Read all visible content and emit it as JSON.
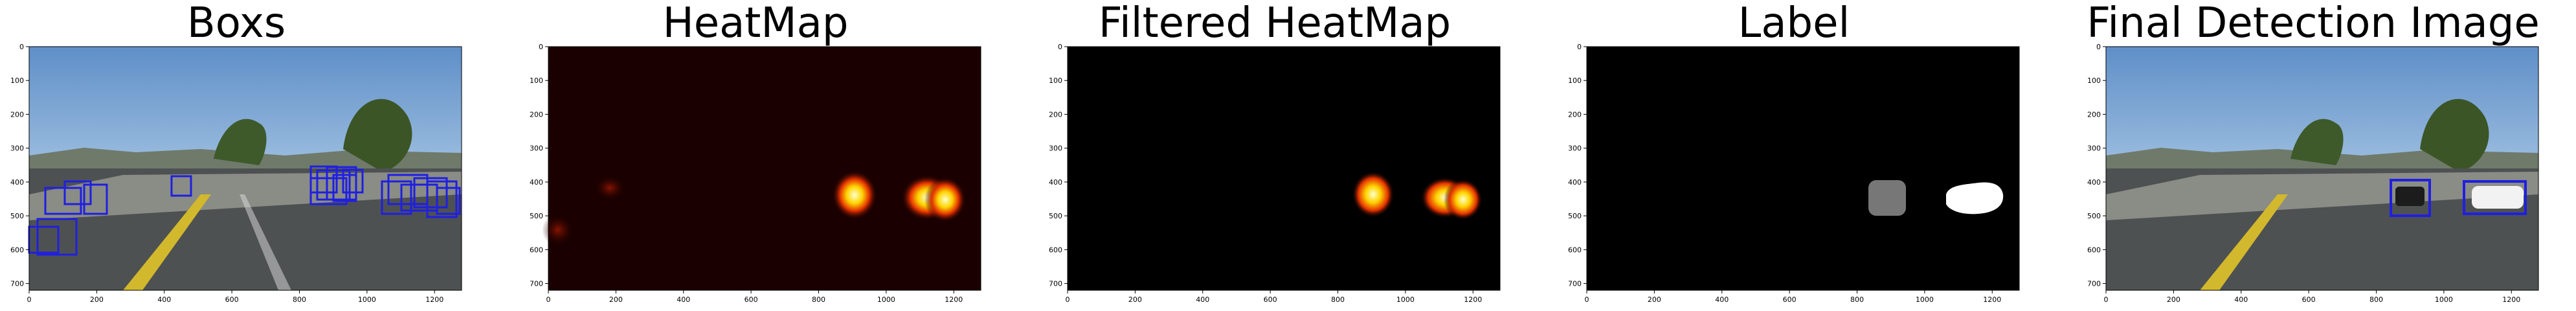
{
  "panels": [
    {
      "id": "boxes",
      "title": "Boxs"
    },
    {
      "id": "heatmap",
      "title": "HeatMap"
    },
    {
      "id": "filtered",
      "title": "Filtered HeatMap"
    },
    {
      "id": "label",
      "title": "Label"
    },
    {
      "id": "final",
      "title": "Final Detection Image"
    }
  ],
  "axes": {
    "x_ticks": [
      0,
      200,
      400,
      600,
      800,
      1000,
      1200
    ],
    "y_ticks": [
      0,
      100,
      200,
      300,
      400,
      500,
      600,
      700
    ],
    "x_range": [
      0,
      1280
    ],
    "y_range": [
      0,
      720
    ]
  },
  "colors": {
    "box_color": "#1f1fe0",
    "heat_background": "#1a0000",
    "label_blob_gray": "#777777",
    "label_blob_white": "#ffffff"
  }
}
